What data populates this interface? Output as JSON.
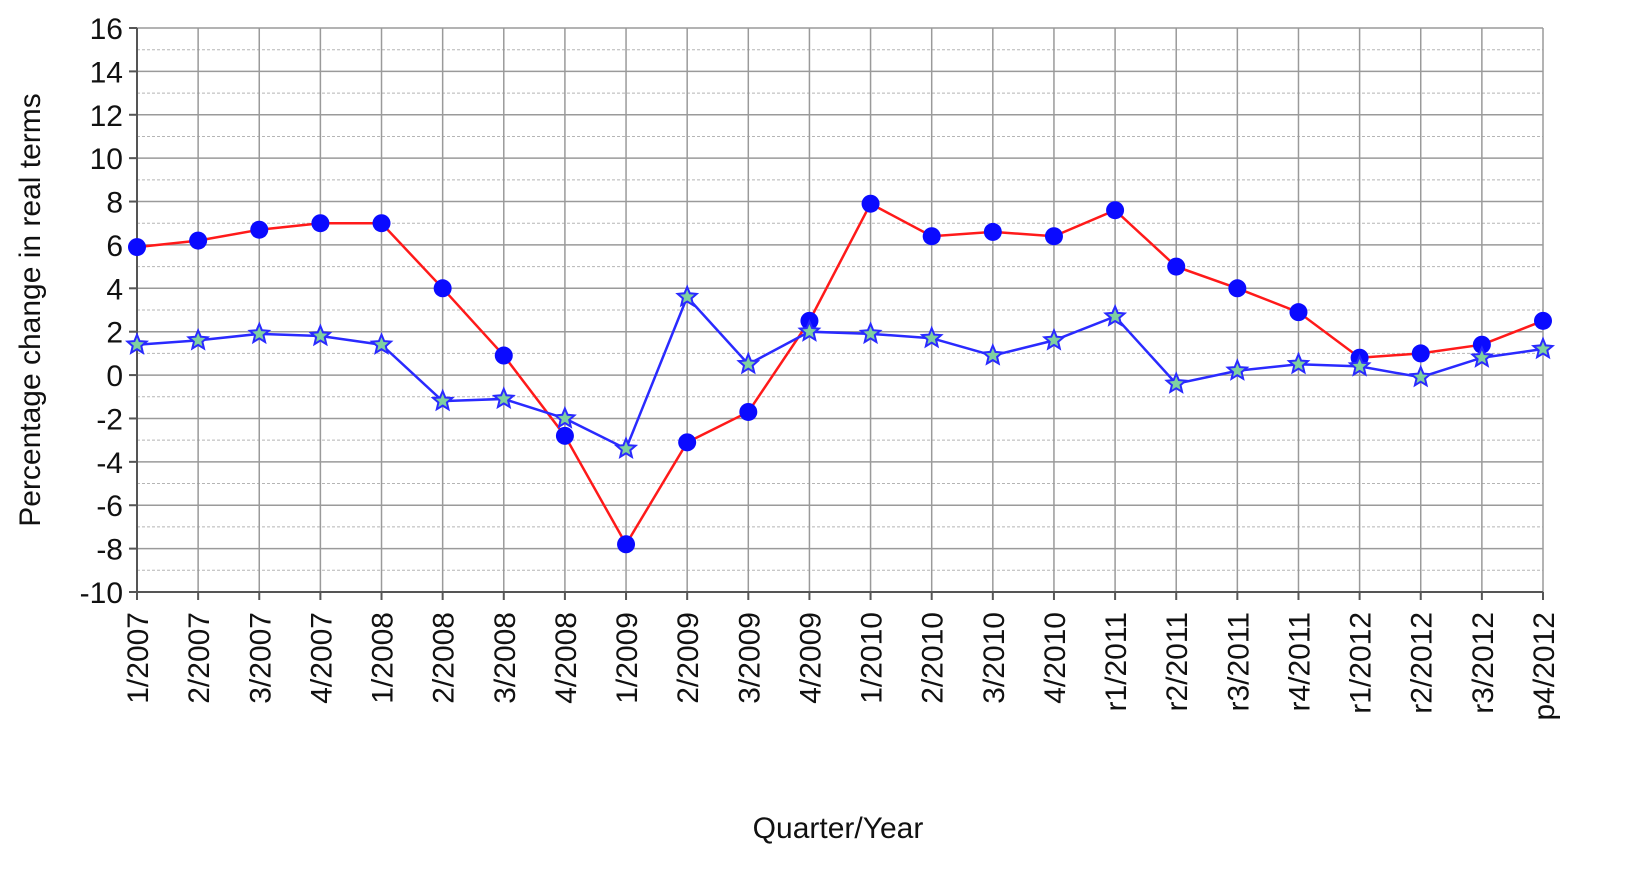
{
  "chart_data": {
    "type": "line",
    "x_label": "Quarter/Year",
    "y_label": "Percentage change in real terms",
    "categories": [
      "1/2007",
      "2/2007",
      "3/2007",
      "4/2007",
      "1/2008",
      "2/2008",
      "3/2008",
      "4/2008",
      "1/2009",
      "2/2009",
      "3/2009",
      "4/2009",
      "1/2010",
      "2/2010",
      "3/2010",
      "4/2010",
      "r1/2011",
      "r2/2011",
      "r3/2011",
      "r4/2011",
      "r1/2012",
      "r2/2012",
      "r3/2012",
      "p4/2012"
    ],
    "series": [
      {
        "color": "#ff1a1a",
        "marker": "circle",
        "marker_color": "#0a0aff",
        "values": [
          5.9,
          6.2,
          6.7,
          7.0,
          7.0,
          4.0,
          0.9,
          -2.8,
          -7.8,
          -3.1,
          -1.7,
          2.5,
          7.9,
          6.4,
          6.6,
          6.4,
          7.6,
          5.0,
          4.0,
          2.9,
          0.8,
          1.0,
          1.4,
          2.5
        ]
      },
      {
        "color": "#2a2aff",
        "marker": "star",
        "marker_color": "#7fd0a0",
        "values": [
          1.4,
          1.6,
          1.9,
          1.8,
          1.4,
          -1.2,
          -1.1,
          -2.0,
          -3.4,
          3.6,
          0.5,
          2.0,
          1.9,
          1.7,
          0.9,
          1.6,
          2.7,
          -0.4,
          0.2,
          0.5,
          0.4,
          -0.1,
          0.8,
          1.2
        ]
      }
    ],
    "ylim": [
      -10,
      16
    ],
    "yticks": [
      -10,
      -8,
      -6,
      -4,
      -2,
      0,
      2,
      4,
      6,
      8,
      10,
      12,
      14,
      16
    ],
    "minor_yticks": [
      -9,
      -7,
      -5,
      -3,
      -1,
      1,
      3,
      5,
      7,
      9,
      11,
      13,
      15
    ],
    "grid": true
  }
}
